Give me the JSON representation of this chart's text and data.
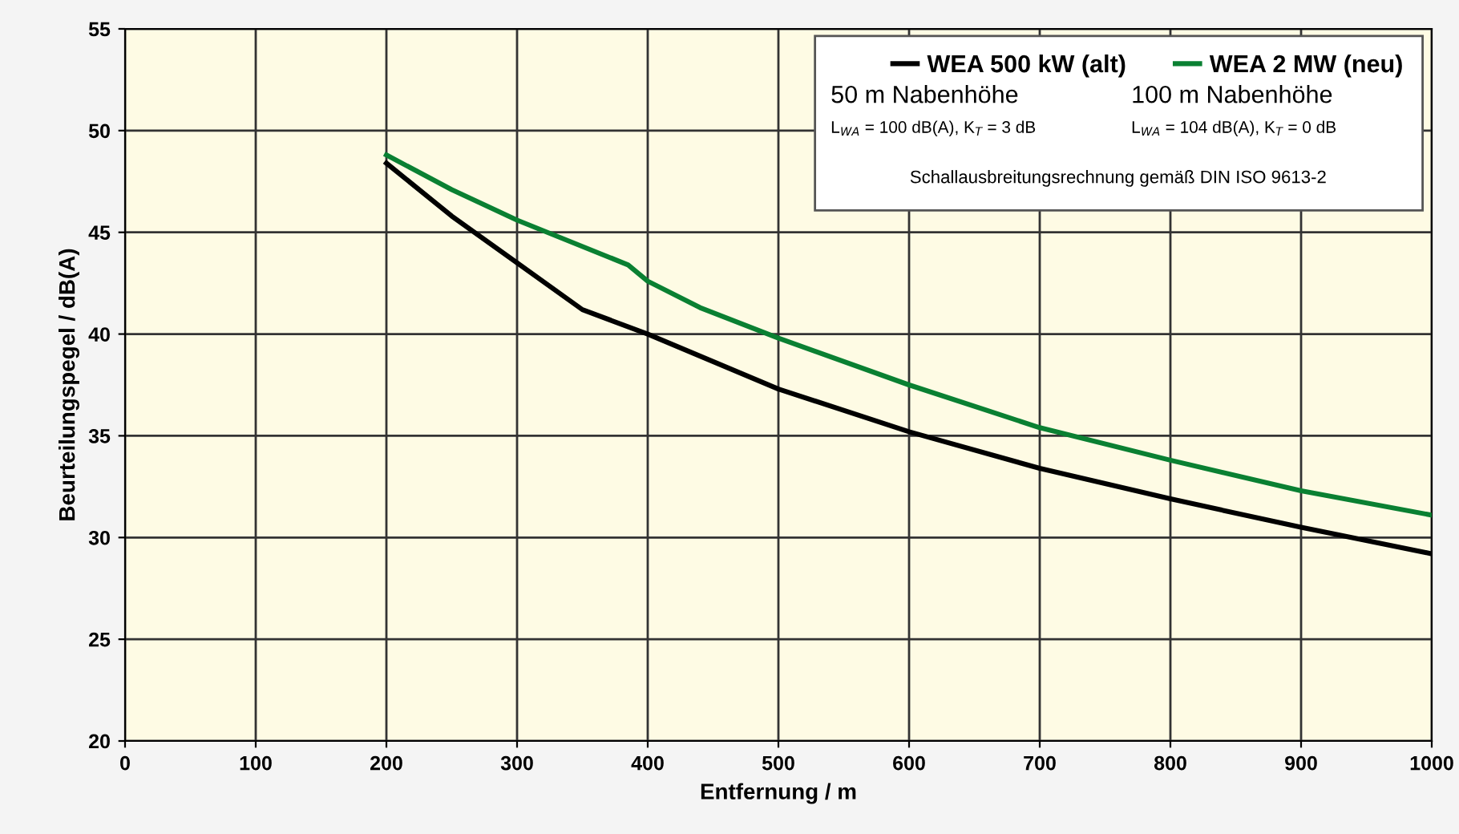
{
  "chart_data": {
    "type": "line",
    "xlabel": "Entfernung / m",
    "ylabel": "Beurteilungspegel / dB(A)",
    "xlim": [
      0,
      1000
    ],
    "ylim": [
      20,
      55
    ],
    "xticks": [
      0,
      100,
      200,
      300,
      400,
      500,
      600,
      700,
      800,
      900,
      1000
    ],
    "yticks": [
      20,
      25,
      30,
      35,
      40,
      45,
      50,
      55
    ],
    "grid": true,
    "legend": "top right",
    "marker": "none",
    "line_style": "solid",
    "series": [
      {
        "name": "WEA 500 kW (alt)",
        "color": "#000000",
        "x": [
          200,
          250,
          300,
          350,
          400,
          500,
          600,
          700,
          800,
          900,
          1000
        ],
        "values": [
          48.4,
          45.8,
          43.5,
          41.2,
          40.0,
          37.3,
          35.2,
          33.4,
          31.9,
          30.5,
          29.2
        ]
      },
      {
        "name": "WEA 2 MW (neu)",
        "color": "#0a8032",
        "x": [
          200,
          250,
          300,
          385,
          400,
          440,
          500,
          600,
          700,
          800,
          900,
          1000
        ],
        "values": [
          48.8,
          47.1,
          45.6,
          43.4,
          42.6,
          41.3,
          39.8,
          37.5,
          35.4,
          33.8,
          32.3,
          31.1
        ]
      }
    ],
    "annotations": [
      "50 m Nabenhöhe",
      "L$_{WA}$ = 100 dB(A), K$_{T}$ = 3 dB",
      "100 m Nabenhöhe",
      "L$_{WA}$ = 104 dB(A), K$_{T}$ = 0 dB",
      "Schallausbreitungsrechnung gemäß DIN ISO 9613-2"
    ]
  }
}
